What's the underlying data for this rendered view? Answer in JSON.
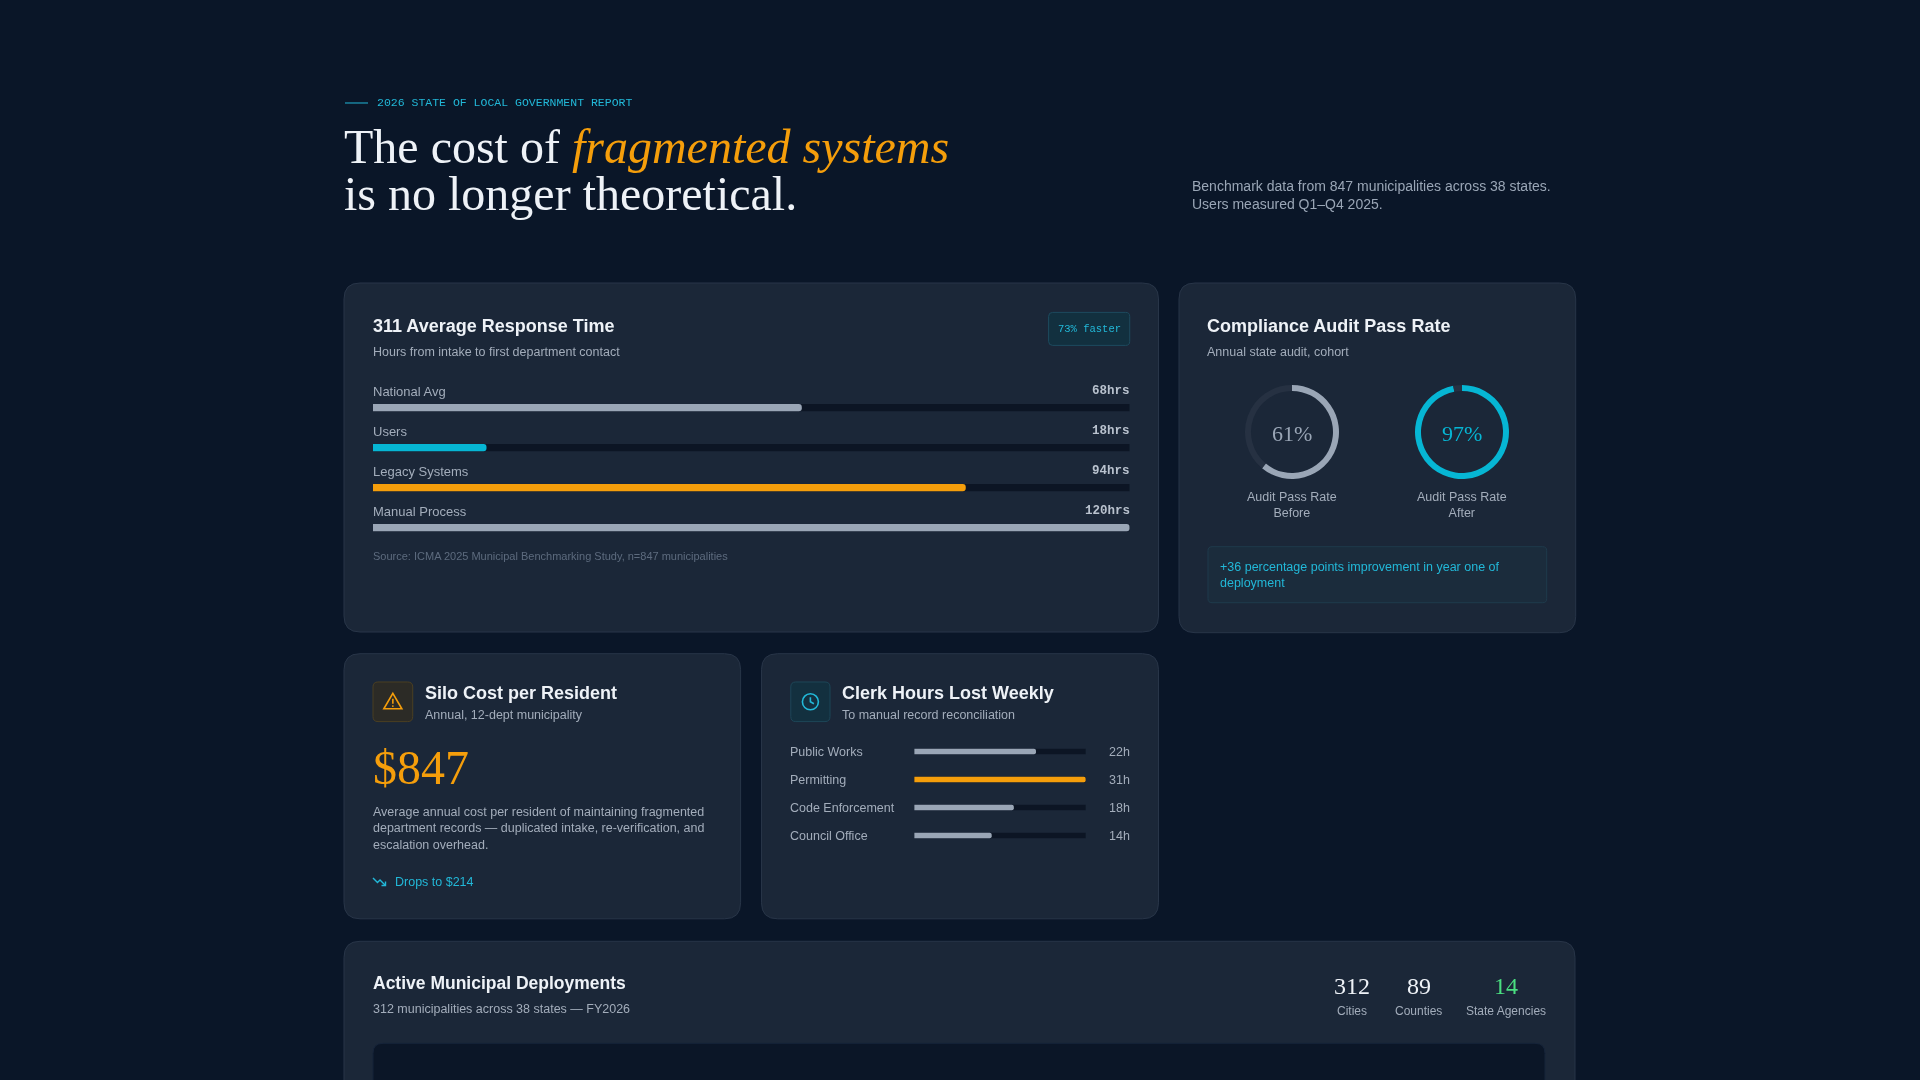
{
  "chart_data": [
    {
      "type": "other",
      "title": "The cost of fragmented systems is no longer theoretical.",
      "annotations": [
        "2026 STATE OF LOCAL GOVERNMENT REPORT",
        "Benchmark data from 847 municipalities across 38 states. Users measured Q1–Q4 2025."
      ]
    },
    {
      "type": "bar",
      "orientation": "horizontal",
      "title": "311 Average Response Time",
      "subtitle": "Hours from intake to first department contact",
      "categories": [
        "National Avg",
        "Users",
        "Legacy Systems",
        "Manual Process"
      ],
      "values": [
        68,
        18,
        94,
        120
      ],
      "colors": [
        "#9aa6b6",
        "#06b6d4",
        "#f59e0b",
        "#9aa6b6"
      ],
      "value_labels": [
        "68hrs",
        "18hrs",
        "94hrs",
        "120hrs"
      ],
      "xlim": [
        0,
        120
      ],
      "tick_labels": "y",
      "annotations": [
        "73% faster",
        "Source: ICMA 2025 Municipal Benchmarking Study, n=847 municipalities"
      ]
    },
    {
      "type": "other",
      "title": "Compliance Audit Pass Rate",
      "subtitle": "Annual state audit, cohort",
      "annotations": [
        "+36 percentage points improvement in year one of deployment"
      ]
    },
    {
      "type": "donut",
      "title": "Audit Pass Rate Before",
      "categories": [
        null,
        null
      ],
      "values": [
        61,
        39
      ],
      "colors": [
        "#9aa6b6",
        "#263142"
      ],
      "value_labels": [
        "61%",
        null
      ]
    },
    {
      "type": "donut",
      "title": "Audit Pass Rate After",
      "categories": [
        null,
        null
      ],
      "values": [
        97,
        3
      ],
      "colors": [
        "#06b6d4",
        "#263142"
      ],
      "value_labels": [
        "97%",
        null
      ]
    },
    {
      "type": "other",
      "title": "Silo Cost per Resident",
      "subtitle": "Annual, 12-dept municipality",
      "values": [
        847
      ],
      "value_labels": [
        "$847"
      ],
      "annotations": [
        "Average annual cost per resident of maintaining fragmented department records — duplicated intake, re-verification, and escalation overhead.",
        "Drops to $214"
      ]
    },
    {
      "type": "bar",
      "orientation": "horizontal",
      "title": "Clerk Hours Lost Weekly",
      "subtitle": "To manual record reconciliation",
      "categories": [
        "Public Works",
        "Permitting",
        "Code Enforcement",
        "Council Office"
      ],
      "values": [
        22,
        31,
        18,
        14
      ],
      "colors": [
        "#9aa6b6",
        "#f59e0b",
        "#9aa6b6",
        "#9aa6b6"
      ],
      "value_labels": [
        "22h",
        "31h",
        "18h",
        "14h"
      ],
      "xlim": [
        0,
        31
      ],
      "tick_labels": "y"
    },
    {
      "type": "other",
      "title": "Active Municipal Deployments",
      "subtitle": "312 municipalities across 38 states — FY2026",
      "categories": [
        "Cities",
        "Counties",
        "State Agencies"
      ],
      "values": [
        312,
        89,
        14
      ],
      "data_labels": true
    }
  ]
}
